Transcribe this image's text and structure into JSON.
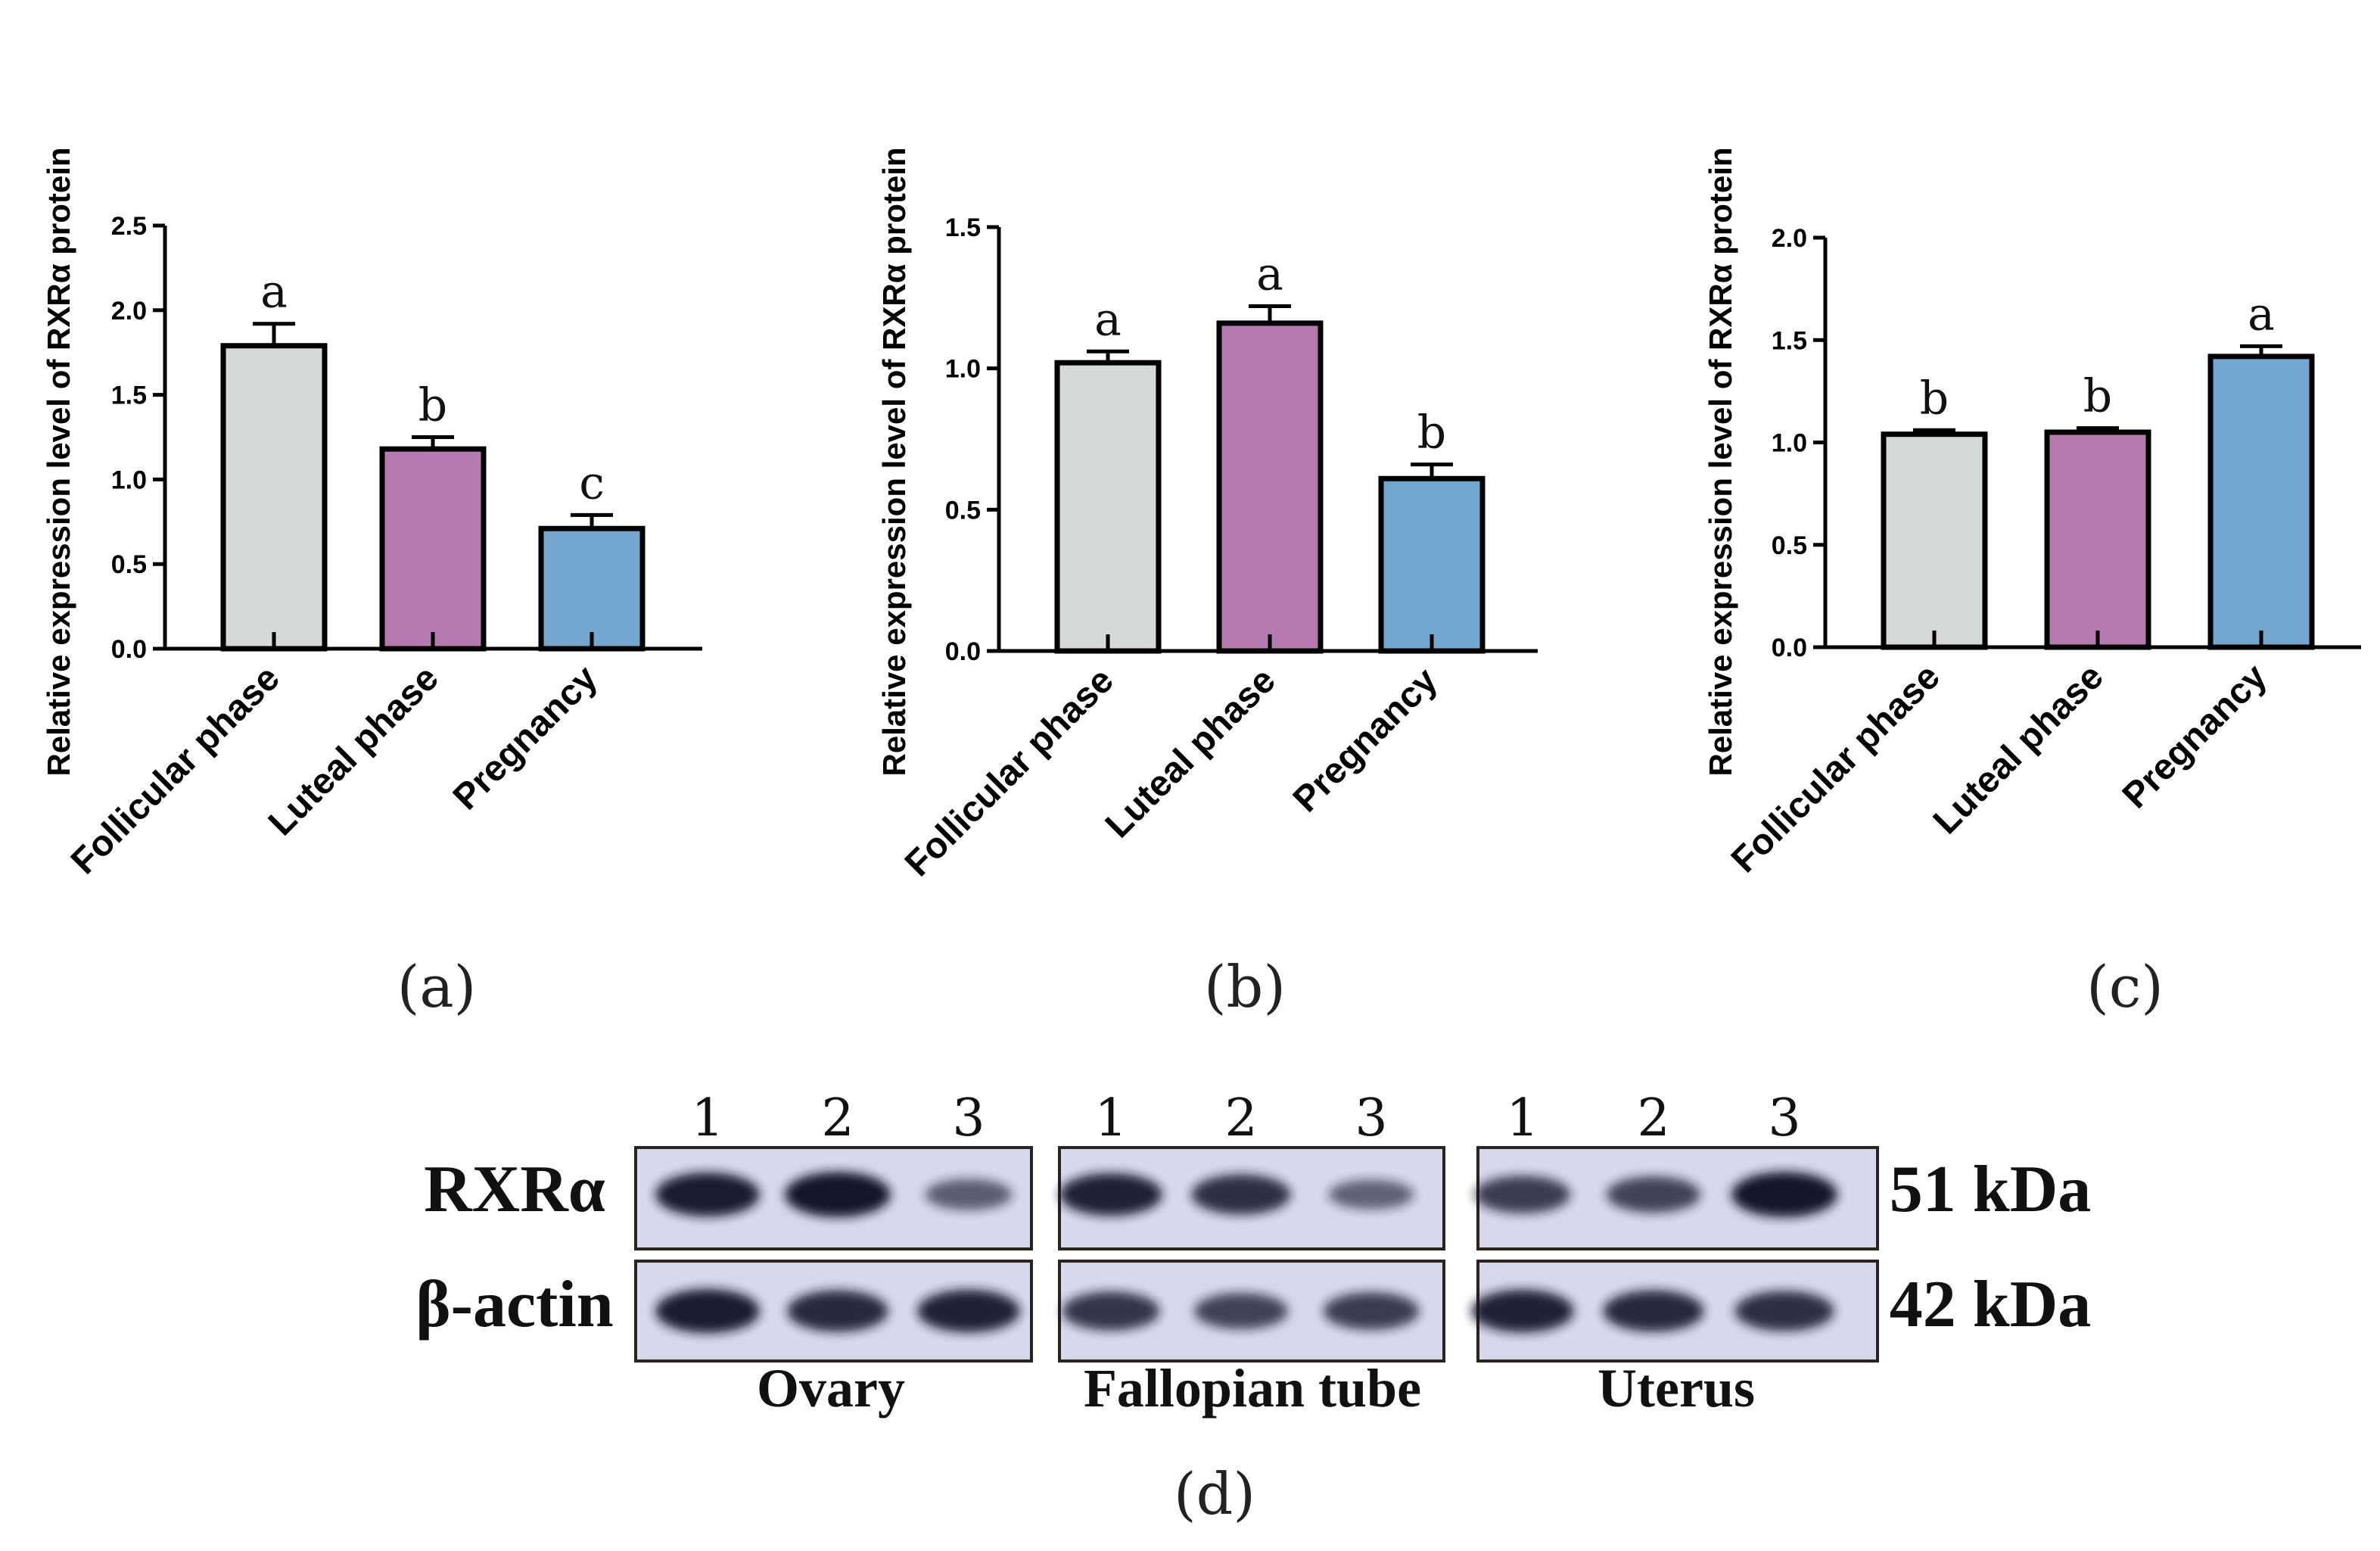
{
  "colors": {
    "follicular": "#d5d9d9",
    "luteal": "#b67ab1",
    "pregnancy": "#74a7cf",
    "blot_bg": "#d6d9ec",
    "band": "#14142a"
  },
  "chart_data": [
    {
      "type": "bar",
      "panel": "(a)",
      "ylabel": "Relative expression level of RXRα protein",
      "categories": [
        "Follicular phase",
        "Luteal phase",
        "Pregnancy"
      ],
      "values": [
        1.79,
        1.18,
        0.71
      ],
      "errors": [
        0.13,
        0.07,
        0.08
      ],
      "letters": [
        "a",
        "b",
        "c"
      ],
      "ylim": [
        0,
        2.5
      ],
      "yticks": [
        "0.0",
        "0.5",
        "1.0",
        "1.5",
        "2.0",
        "2.5"
      ]
    },
    {
      "type": "bar",
      "panel": "(b)",
      "ylabel": "Relative expression level of RXRα protein",
      "categories": [
        "Follicular phase",
        "Luteal phase",
        "Pregnancy"
      ],
      "values": [
        1.02,
        1.16,
        0.61
      ],
      "errors": [
        0.04,
        0.06,
        0.05
      ],
      "letters": [
        "a",
        "a",
        "b"
      ],
      "ylim": [
        0,
        1.5
      ],
      "yticks": [
        "0.0",
        "0.5",
        "1.0",
        "1.5"
      ]
    },
    {
      "type": "bar",
      "panel": "(c)",
      "ylabel": "Relative expression level of RXRα protein",
      "categories": [
        "Follicular phase",
        "Luteal phase",
        "Pregnancy"
      ],
      "values": [
        1.04,
        1.05,
        1.42
      ],
      "errors": [
        0.02,
        0.02,
        0.05
      ],
      "letters": [
        "b",
        "b",
        "a"
      ],
      "ylim": [
        0,
        2.0
      ],
      "yticks": [
        "0.0",
        "0.5",
        "1.0",
        "1.5",
        "2.0"
      ]
    }
  ],
  "western_blot": {
    "panel": "(d)",
    "lane_numbers": [
      "1",
      "2",
      "3"
    ],
    "rows": [
      {
        "label": "RXRα",
        "size": "51 kDa"
      },
      {
        "label": "β-actin",
        "size": "42 kDa"
      }
    ],
    "tissues": [
      "Ovary",
      "Fallopian tube",
      "Uterus"
    ],
    "band_intensity": [
      [
        [
          0.95,
          1.0,
          0.45
        ],
        [
          0.9,
          0.8,
          0.4
        ],
        [
          0.7,
          0.65,
          1.0
        ]
      ],
      [
        [
          0.95,
          0.85,
          0.9
        ],
        [
          0.75,
          0.65,
          0.7
        ],
        [
          0.9,
          0.85,
          0.8
        ]
      ]
    ]
  }
}
